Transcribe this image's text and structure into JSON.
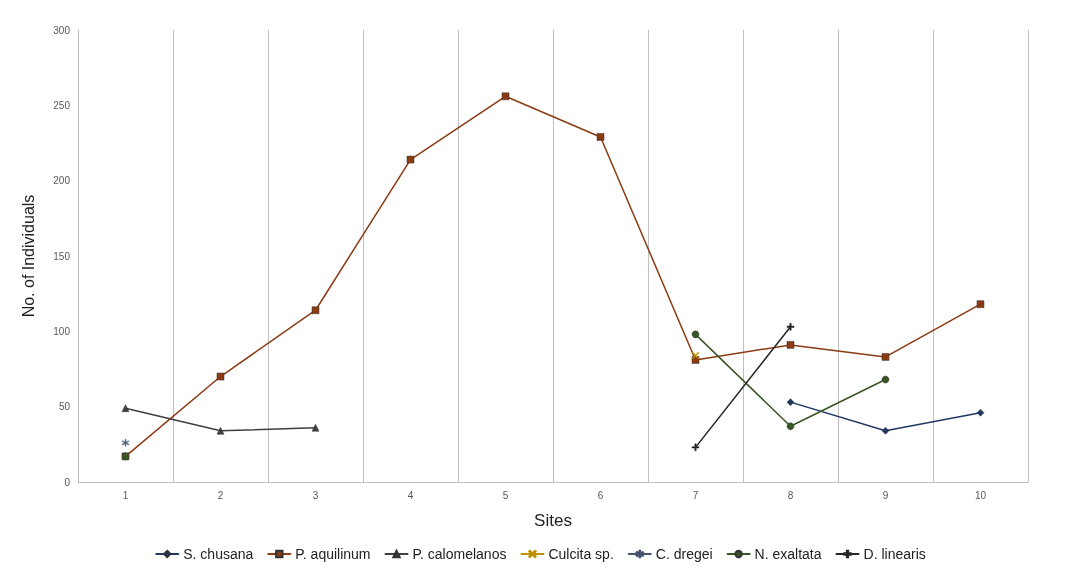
{
  "chart_data": {
    "type": "line",
    "xlabel": "Sites",
    "ylabel": "No. of Individuals",
    "categories": [
      "1",
      "2",
      "3",
      "4",
      "5",
      "6",
      "7",
      "8",
      "9",
      "10"
    ],
    "ylim": [
      0,
      300
    ],
    "yticks": [
      0,
      50,
      100,
      150,
      200,
      250,
      300
    ],
    "grid": "x",
    "legend": "bottom",
    "series": [
      {
        "name": "S. chusana",
        "color": "#1f3864",
        "marker": "diamond",
        "values": [
          null,
          null,
          null,
          null,
          null,
          null,
          null,
          53,
          34,
          46
        ]
      },
      {
        "name": "P. aquilinum",
        "color": "#8b3a12",
        "marker": "square",
        "values": [
          17,
          70,
          114,
          214,
          256,
          229,
          81,
          91,
          83,
          118
        ]
      },
      {
        "name": "P. calomelanos",
        "color": "#3f3f3f",
        "marker": "triangle",
        "values": [
          49,
          34,
          36,
          null,
          null,
          null,
          null,
          null,
          null,
          null
        ]
      },
      {
        "name": "Culcita sp.",
        "color": "#bf9000",
        "marker": "cross",
        "values": [
          null,
          null,
          null,
          null,
          null,
          null,
          84,
          null,
          null,
          null
        ]
      },
      {
        "name": "C. dregei",
        "color": "#44546a",
        "marker": "star",
        "values": [
          26,
          null,
          null,
          null,
          null,
          null,
          null,
          null,
          null,
          null
        ]
      },
      {
        "name": "N. exaltata",
        "color": "#375623",
        "marker": "circle",
        "values": [
          17,
          null,
          null,
          null,
          null,
          null,
          98,
          37,
          68,
          null
        ]
      },
      {
        "name": "D. linearis",
        "color": "#262626",
        "marker": "plus",
        "values": [
          null,
          null,
          null,
          null,
          null,
          null,
          23,
          103,
          null,
          null
        ]
      }
    ]
  }
}
